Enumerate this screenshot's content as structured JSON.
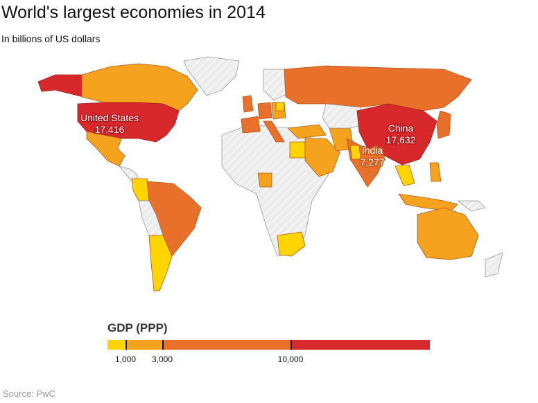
{
  "title": "World's largest economies in 2014",
  "subtitle": "In billions of US dollars",
  "source": "Source: PwC",
  "chart_data": {
    "type": "choropleth",
    "metric": "GDP (PPP)",
    "legend": {
      "title": "GDP (PPP)",
      "thresholds": [
        1000,
        3000,
        10000
      ],
      "tick_labels": [
        "1,000",
        "3,000",
        "10,000"
      ],
      "colors": [
        "#FFD400",
        "#F5A31E",
        "#E8702A",
        "#D7282C"
      ],
      "no_data_color": "#E6E6E6"
    },
    "labels": [
      {
        "country": "United States",
        "value": "17,416"
      },
      {
        "country": "China",
        "value": "17,632"
      },
      {
        "country": "India",
        "value": "7,277"
      }
    ]
  }
}
